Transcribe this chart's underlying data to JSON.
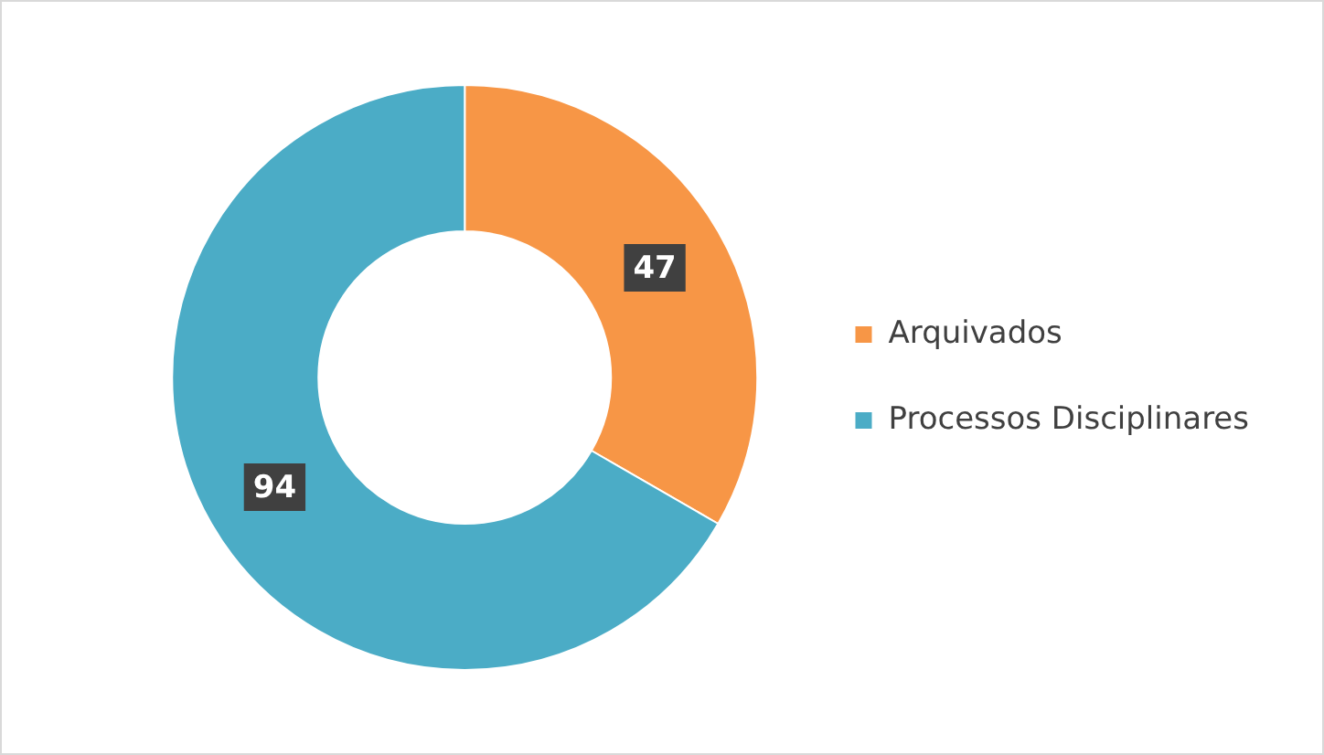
{
  "chart_data": {
    "type": "donut",
    "categories": [
      "Arquivados",
      "Processos Disciplinares"
    ],
    "values": [
      47,
      94
    ],
    "colors": [
      "#f79646",
      "#4bacc6"
    ],
    "data_labels": true,
    "legend": "right"
  }
}
